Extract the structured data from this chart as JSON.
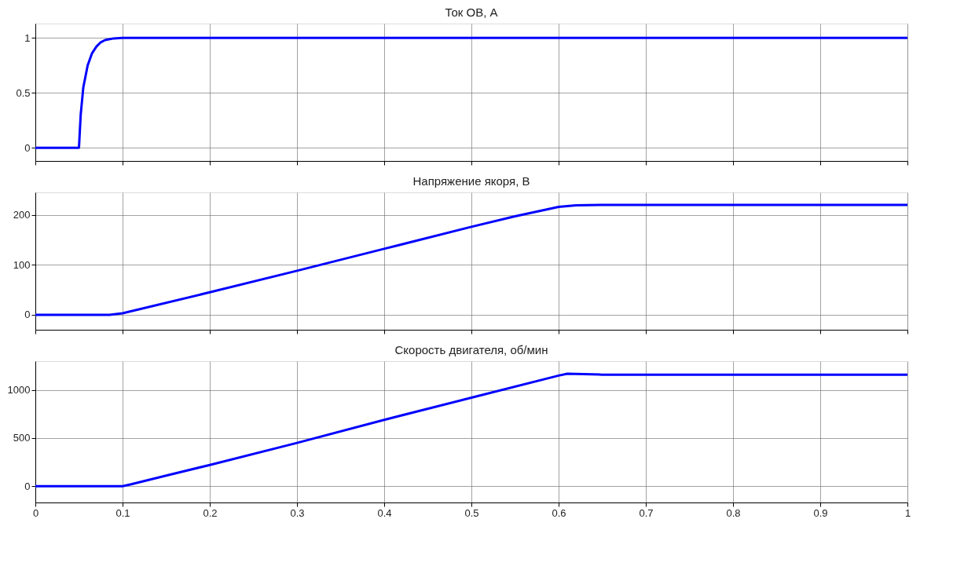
{
  "chart_data": [
    {
      "type": "line",
      "title": "Ток ОВ, А",
      "x": [
        0,
        0.05,
        0.052,
        0.055,
        0.06,
        0.065,
        0.07,
        0.075,
        0.08,
        0.09,
        0.1,
        1
      ],
      "series": [
        {
          "color": "#0000ff",
          "values": [
            0,
            0,
            0.3,
            0.55,
            0.75,
            0.86,
            0.92,
            0.96,
            0.98,
            0.995,
            1,
            1
          ]
        }
      ],
      "xlim": [
        0,
        1
      ],
      "xticks": [
        0,
        0.1,
        0.2,
        0.3,
        0.4,
        0.5,
        0.6,
        0.7,
        0.8,
        0.9,
        1
      ],
      "ylim": [
        -0.12,
        1.13
      ],
      "yticks": [
        0,
        0.5,
        1
      ],
      "grid": true,
      "tick_labels": "y"
    },
    {
      "type": "line",
      "title": "Напряжение якоря, В",
      "x": [
        0,
        0.085,
        0.1,
        0.2,
        0.3,
        0.4,
        0.5,
        0.55,
        0.6,
        0.62,
        0.65,
        1
      ],
      "series": [
        {
          "color": "#0000ff",
          "values": [
            0,
            0,
            3,
            45,
            88,
            132,
            176,
            197,
            216,
            219,
            220,
            220
          ]
        }
      ],
      "xlim": [
        0,
        1
      ],
      "xticks": [
        0,
        0.1,
        0.2,
        0.3,
        0.4,
        0.5,
        0.6,
        0.7,
        0.8,
        0.9,
        1
      ],
      "ylim": [
        -30,
        245
      ],
      "yticks": [
        0,
        100,
        200
      ],
      "grid": true,
      "tick_labels": "y"
    },
    {
      "type": "line",
      "title": "Скорость двигателя, об/мин",
      "x": [
        0,
        0.1,
        0.11,
        0.15,
        0.2,
        0.3,
        0.4,
        0.5,
        0.6,
        0.61,
        0.65,
        1
      ],
      "series": [
        {
          "color": "#0000ff",
          "values": [
            0,
            0,
            20,
            110,
            220,
            450,
            690,
            920,
            1150,
            1170,
            1160,
            1160
          ]
        }
      ],
      "xlim": [
        0,
        1
      ],
      "xticks": [
        0,
        0.1,
        0.2,
        0.3,
        0.4,
        0.5,
        0.6,
        0.7,
        0.8,
        0.9,
        1
      ],
      "ylim": [
        -170,
        1300
      ],
      "yticks": [
        0,
        500,
        1000
      ],
      "grid": true
    }
  ]
}
